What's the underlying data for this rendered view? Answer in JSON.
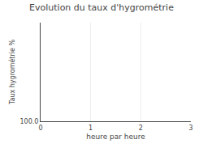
{
  "chart_data": {
    "type": "line",
    "title": "Evolution du taux d'hygrométrie",
    "xlabel": "heure par heure",
    "ylabel": "Taux hygrométrie %",
    "x": [],
    "values": [],
    "xlim": [
      0,
      3
    ],
    "xticks": [
      0,
      1,
      2,
      3
    ],
    "ylim": [
      100,
      10
    ],
    "yticks": [
      {
        "value": 100,
        "label": "100.0"
      }
    ],
    "grid": true
  }
}
